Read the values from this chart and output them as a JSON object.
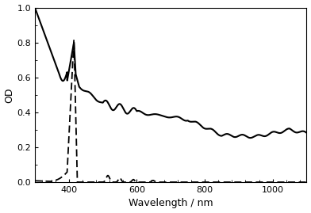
{
  "title": "",
  "xlabel": "Wavelength / nm",
  "ylabel": "OD",
  "xlim": [
    300,
    1100
  ],
  "ylim": [
    0,
    1.0
  ],
  "yticks": [
    0,
    0.2,
    0.4,
    0.6,
    0.8,
    1.0
  ],
  "xticks": [
    400,
    600,
    800,
    1000
  ],
  "line_color": "#000000",
  "background_color": "#ffffff",
  "figsize": [
    3.92,
    2.69
  ],
  "dpi": 100
}
